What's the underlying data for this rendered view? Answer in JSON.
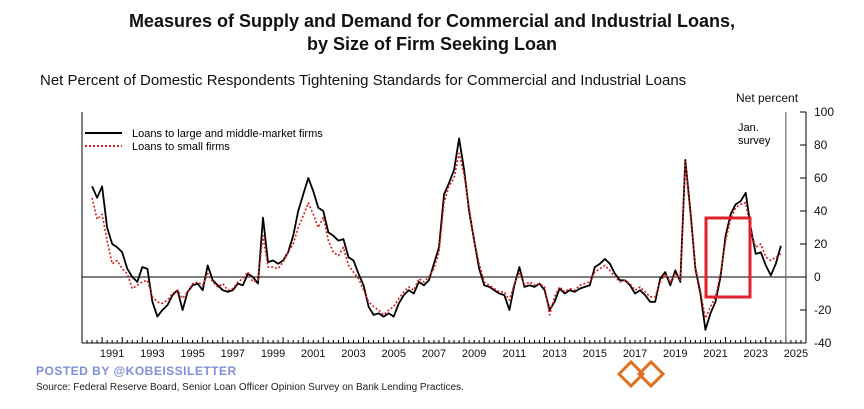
{
  "header": {
    "title_line1": "Measures of Supply and Demand for Commercial and Industrial Loans,",
    "title_line2": "by Size of Firm Seeking Loan",
    "subtitle": "Net Percent of Domestic Respondents Tightening Standards for Commercial and Industrial Loans",
    "unit_label": "Net percent"
  },
  "annotation": {
    "line1": "Jan.",
    "line2": "survey"
  },
  "footer": {
    "posted_by": "POSTED BY @KOBEISSILETTER",
    "source": "Source:  Federal Reserve Board, Senior Loan Officer Opinion Survey on Bank Lending Practices."
  },
  "colors": {
    "large": "#000000",
    "small": "#d42020",
    "highlight": "#e0202a",
    "watermark": "#7f8fd8",
    "logo": "#e07020"
  },
  "chart_data": {
    "type": "line",
    "title": "Measures of Supply and Demand for Commercial and Industrial Loans, by Size of Firm Seeking Loan",
    "ylabel": "Net percent",
    "xlim": [
      1990,
      2026
    ],
    "ylim": [
      -40,
      100
    ],
    "yticks": [
      -40,
      -20,
      0,
      20,
      40,
      60,
      80,
      100
    ],
    "xticks": [
      1991,
      1993,
      1995,
      1997,
      1999,
      2001,
      2003,
      2005,
      2007,
      2009,
      2011,
      2013,
      2015,
      2017,
      2019,
      2021,
      2023,
      2025
    ],
    "legend": "top-left",
    "grid": false,
    "series": [
      {
        "name": "Loans to large and middle-market firms",
        "style": "solid",
        "points": [
          [
            1990.5,
            55
          ],
          [
            1990.75,
            48
          ],
          [
            1991.0,
            55
          ],
          [
            1991.25,
            30
          ],
          [
            1991.5,
            20
          ],
          [
            1991.75,
            18
          ],
          [
            1992.0,
            15
          ],
          [
            1992.25,
            5
          ],
          [
            1992.5,
            0
          ],
          [
            1992.75,
            -3
          ],
          [
            1993.0,
            6
          ],
          [
            1993.25,
            5
          ],
          [
            1993.5,
            -15
          ],
          [
            1993.75,
            -24
          ],
          [
            1994.0,
            -20
          ],
          [
            1994.25,
            -17
          ],
          [
            1994.5,
            -11
          ],
          [
            1994.75,
            -8
          ],
          [
            1995.0,
            -20
          ],
          [
            1995.25,
            -9
          ],
          [
            1995.5,
            -5
          ],
          [
            1995.75,
            -4
          ],
          [
            1996.0,
            -8
          ],
          [
            1996.25,
            7
          ],
          [
            1996.5,
            -2
          ],
          [
            1996.75,
            -5
          ],
          [
            1997.0,
            -8
          ],
          [
            1997.25,
            -9
          ],
          [
            1997.5,
            -8
          ],
          [
            1997.75,
            -4
          ],
          [
            1998.0,
            -5
          ],
          [
            1998.25,
            2
          ],
          [
            1998.5,
            0
          ],
          [
            1998.75,
            -4
          ],
          [
            1999.0,
            36
          ],
          [
            1999.25,
            9
          ],
          [
            1999.5,
            10
          ],
          [
            1999.75,
            8
          ],
          [
            2000.0,
            10
          ],
          [
            2000.25,
            15
          ],
          [
            2000.5,
            25
          ],
          [
            2000.75,
            40
          ],
          [
            2001.0,
            50
          ],
          [
            2001.25,
            60
          ],
          [
            2001.5,
            52
          ],
          [
            2001.75,
            42
          ],
          [
            2002.0,
            40
          ],
          [
            2002.25,
            27
          ],
          [
            2002.5,
            25
          ],
          [
            2002.75,
            22
          ],
          [
            2003.0,
            23
          ],
          [
            2003.25,
            12
          ],
          [
            2003.5,
            10
          ],
          [
            2003.75,
            2
          ],
          [
            2004.0,
            -5
          ],
          [
            2004.25,
            -18
          ],
          [
            2004.5,
            -23
          ],
          [
            2004.75,
            -22
          ],
          [
            2005.0,
            -24
          ],
          [
            2005.25,
            -22
          ],
          [
            2005.5,
            -24
          ],
          [
            2005.75,
            -16
          ],
          [
            2006.0,
            -11
          ],
          [
            2006.25,
            -8
          ],
          [
            2006.5,
            -10
          ],
          [
            2006.75,
            -3
          ],
          [
            2007.0,
            -5
          ],
          [
            2007.25,
            -2
          ],
          [
            2007.5,
            8
          ],
          [
            2007.75,
            18
          ],
          [
            2008.0,
            50
          ],
          [
            2008.25,
            57
          ],
          [
            2008.5,
            65
          ],
          [
            2008.75,
            84
          ],
          [
            2009.0,
            65
          ],
          [
            2009.25,
            40
          ],
          [
            2009.5,
            22
          ],
          [
            2009.75,
            5
          ],
          [
            2010.0,
            -5
          ],
          [
            2010.25,
            -6
          ],
          [
            2010.5,
            -8
          ],
          [
            2010.75,
            -10
          ],
          [
            2011.0,
            -11
          ],
          [
            2011.25,
            -20
          ],
          [
            2011.5,
            -5
          ],
          [
            2011.75,
            6
          ],
          [
            2012.0,
            -6
          ],
          [
            2012.25,
            -5
          ],
          [
            2012.5,
            -6
          ],
          [
            2012.75,
            -4
          ],
          [
            2013.0,
            -8
          ],
          [
            2013.25,
            -20
          ],
          [
            2013.5,
            -15
          ],
          [
            2013.75,
            -7
          ],
          [
            2014.0,
            -10
          ],
          [
            2014.25,
            -8
          ],
          [
            2014.5,
            -9
          ],
          [
            2014.75,
            -7
          ],
          [
            2015.0,
            -6
          ],
          [
            2015.25,
            -5
          ],
          [
            2015.5,
            6
          ],
          [
            2015.75,
            8
          ],
          [
            2016.0,
            11
          ],
          [
            2016.25,
            8
          ],
          [
            2016.5,
            2
          ],
          [
            2016.75,
            -2
          ],
          [
            2017.0,
            -2
          ],
          [
            2017.25,
            -5
          ],
          [
            2017.5,
            -10
          ],
          [
            2017.75,
            -8
          ],
          [
            2018.0,
            -11
          ],
          [
            2018.25,
            -15
          ],
          [
            2018.5,
            -15
          ],
          [
            2018.75,
            -1
          ],
          [
            2019.0,
            3
          ],
          [
            2019.25,
            -5
          ],
          [
            2019.5,
            4
          ],
          [
            2019.75,
            -3
          ],
          [
            2020.0,
            71
          ],
          [
            2020.25,
            40
          ],
          [
            2020.5,
            5
          ],
          [
            2020.75,
            -10
          ],
          [
            2021.0,
            -32
          ],
          [
            2021.25,
            -22
          ],
          [
            2021.5,
            -15
          ],
          [
            2021.75,
            0
          ],
          [
            2022.0,
            25
          ],
          [
            2022.25,
            38
          ],
          [
            2022.5,
            44
          ],
          [
            2022.75,
            46
          ],
          [
            2023.0,
            51
          ],
          [
            2023.25,
            30
          ],
          [
            2023.5,
            14
          ],
          [
            2023.75,
            15
          ],
          [
            2024.0,
            7
          ],
          [
            2024.25,
            1
          ],
          [
            2024.5,
            8
          ],
          [
            2024.75,
            19
          ]
        ]
      },
      {
        "name": "Loans to small firms",
        "style": "dotted",
        "points": [
          [
            1990.5,
            48
          ],
          [
            1990.75,
            35
          ],
          [
            1991.0,
            38
          ],
          [
            1991.25,
            22
          ],
          [
            1991.5,
            8
          ],
          [
            1991.75,
            10
          ],
          [
            1992.0,
            5
          ],
          [
            1992.25,
            2
          ],
          [
            1992.5,
            -7
          ],
          [
            1992.75,
            -5
          ],
          [
            1993.0,
            -3
          ],
          [
            1993.25,
            -2
          ],
          [
            1993.5,
            -12
          ],
          [
            1993.75,
            -15
          ],
          [
            1994.0,
            -16
          ],
          [
            1994.25,
            -14
          ],
          [
            1994.5,
            -10
          ],
          [
            1994.75,
            -8
          ],
          [
            1995.0,
            -13
          ],
          [
            1995.25,
            -9
          ],
          [
            1995.5,
            -4
          ],
          [
            1995.75,
            -3
          ],
          [
            1996.0,
            -5
          ],
          [
            1996.25,
            2
          ],
          [
            1996.5,
            -3
          ],
          [
            1996.75,
            -6
          ],
          [
            1997.0,
            -4
          ],
          [
            1997.25,
            -8
          ],
          [
            1997.5,
            -7
          ],
          [
            1997.75,
            -3
          ],
          [
            1998.0,
            -1
          ],
          [
            1998.25,
            3
          ],
          [
            1998.5,
            -3
          ],
          [
            1998.75,
            -2
          ],
          [
            1999.0,
            25
          ],
          [
            1999.25,
            6
          ],
          [
            1999.5,
            6
          ],
          [
            1999.75,
            5
          ],
          [
            2000.0,
            9
          ],
          [
            2000.25,
            15
          ],
          [
            2000.5,
            20
          ],
          [
            2000.75,
            30
          ],
          [
            2001.0,
            37
          ],
          [
            2001.25,
            45
          ],
          [
            2001.5,
            38
          ],
          [
            2001.75,
            30
          ],
          [
            2002.0,
            36
          ],
          [
            2002.25,
            22
          ],
          [
            2002.5,
            15
          ],
          [
            2002.75,
            13
          ],
          [
            2003.0,
            18
          ],
          [
            2003.25,
            7
          ],
          [
            2003.5,
            3
          ],
          [
            2003.75,
            -1
          ],
          [
            2004.0,
            -8
          ],
          [
            2004.25,
            -15
          ],
          [
            2004.5,
            -18
          ],
          [
            2004.75,
            -20
          ],
          [
            2005.0,
            -23
          ],
          [
            2005.25,
            -20
          ],
          [
            2005.5,
            -18
          ],
          [
            2005.75,
            -13
          ],
          [
            2006.0,
            -9
          ],
          [
            2006.25,
            -6
          ],
          [
            2006.5,
            -8
          ],
          [
            2006.75,
            -1
          ],
          [
            2007.0,
            -3
          ],
          [
            2007.25,
            0
          ],
          [
            2007.5,
            5
          ],
          [
            2007.75,
            15
          ],
          [
            2008.0,
            45
          ],
          [
            2008.25,
            55
          ],
          [
            2008.5,
            60
          ],
          [
            2008.75,
            75
          ],
          [
            2009.0,
            62
          ],
          [
            2009.25,
            42
          ],
          [
            2009.5,
            22
          ],
          [
            2009.75,
            8
          ],
          [
            2010.0,
            -3
          ],
          [
            2010.25,
            -5
          ],
          [
            2010.5,
            -7
          ],
          [
            2010.75,
            -9
          ],
          [
            2011.0,
            -9
          ],
          [
            2011.25,
            -14
          ],
          [
            2011.5,
            -4
          ],
          [
            2011.75,
            3
          ],
          [
            2012.0,
            -5
          ],
          [
            2012.25,
            -3
          ],
          [
            2012.5,
            -5
          ],
          [
            2012.75,
            -4
          ],
          [
            2013.0,
            -6
          ],
          [
            2013.25,
            -23
          ],
          [
            2013.5,
            -12
          ],
          [
            2013.75,
            -6
          ],
          [
            2014.0,
            -9
          ],
          [
            2014.25,
            -7
          ],
          [
            2014.5,
            -8
          ],
          [
            2014.75,
            -5
          ],
          [
            2015.0,
            -4
          ],
          [
            2015.25,
            -3
          ],
          [
            2015.5,
            3
          ],
          [
            2015.75,
            5
          ],
          [
            2016.0,
            7
          ],
          [
            2016.25,
            4
          ],
          [
            2016.5,
            0
          ],
          [
            2016.75,
            -3
          ],
          [
            2017.0,
            -2
          ],
          [
            2017.25,
            -4
          ],
          [
            2017.5,
            -8
          ],
          [
            2017.75,
            -6
          ],
          [
            2018.0,
            -9
          ],
          [
            2018.25,
            -12
          ],
          [
            2018.5,
            -12
          ],
          [
            2018.75,
            -3
          ],
          [
            2019.0,
            2
          ],
          [
            2019.25,
            -3
          ],
          [
            2019.5,
            2
          ],
          [
            2019.75,
            -2
          ],
          [
            2020.0,
            70
          ],
          [
            2020.25,
            38
          ],
          [
            2020.5,
            6
          ],
          [
            2020.75,
            -8
          ],
          [
            2021.0,
            -25
          ],
          [
            2021.25,
            -18
          ],
          [
            2021.5,
            -12
          ],
          [
            2021.75,
            2
          ],
          [
            2022.0,
            22
          ],
          [
            2022.25,
            35
          ],
          [
            2022.5,
            42
          ],
          [
            2022.75,
            44
          ],
          [
            2023.0,
            45
          ],
          [
            2023.25,
            28
          ],
          [
            2023.5,
            18
          ],
          [
            2023.75,
            20
          ],
          [
            2024.0,
            12
          ],
          [
            2024.25,
            10
          ],
          [
            2024.5,
            12
          ],
          [
            2024.75,
            14
          ]
        ]
      }
    ]
  }
}
